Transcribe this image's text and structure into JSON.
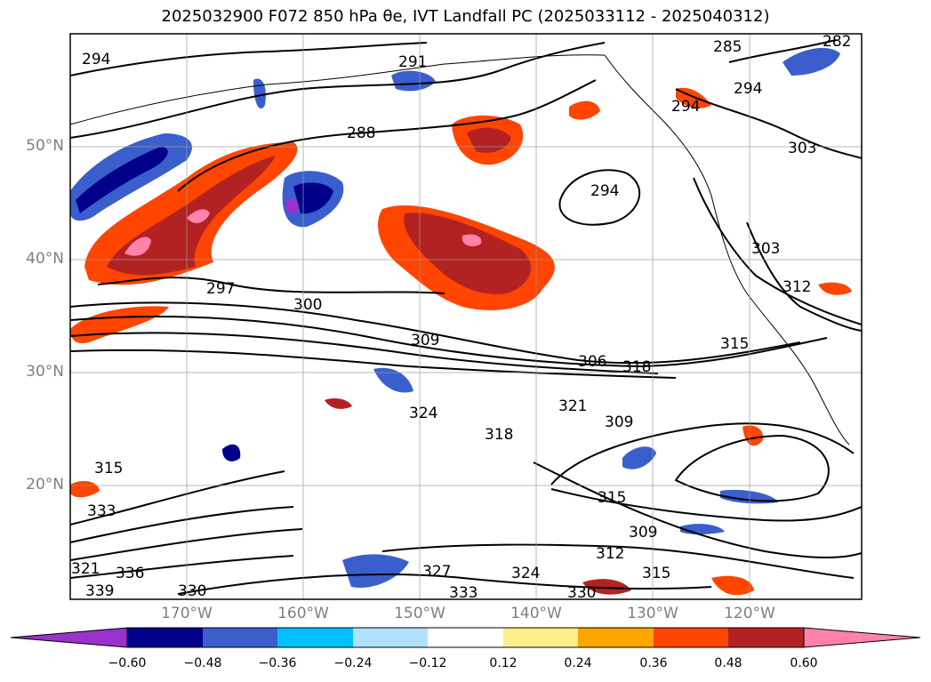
{
  "title": "2025032900 F072 850 hPa θe, IVT Landfall PC (2025033112 - 2025040312)",
  "map": {
    "lat_labels": [
      "50°N",
      "40°N",
      "30°N",
      "20°N"
    ],
    "lon_labels": [
      "170°W",
      "160°W",
      "150°W",
      "140°W",
      "130°W",
      "120°W"
    ],
    "contour_labels": [
      "294",
      "291",
      "288",
      "297",
      "300",
      "309",
      "306",
      "318",
      "324",
      "321",
      "318",
      "309",
      "315",
      "309",
      "312",
      "315",
      "327",
      "333",
      "330",
      "324",
      "336",
      "330",
      "333",
      "321",
      "339",
      "315",
      "303",
      "312",
      "315",
      "294",
      "294",
      "285",
      "282",
      "303",
      "294"
    ]
  },
  "colorbar": {
    "ticks": [
      "−0.60",
      "−0.48",
      "−0.36",
      "−0.24",
      "−0.12",
      "0.12",
      "0.24",
      "0.36",
      "0.48",
      "0.60"
    ],
    "colors": [
      "#9932cc",
      "#00008b",
      "#3a5fcd",
      "#00bfff",
      "#b0e2ff",
      "#ffffff",
      "#ffec8b",
      "#ffa500",
      "#ff4500",
      "#b22222",
      "#ff82ab"
    ]
  }
}
